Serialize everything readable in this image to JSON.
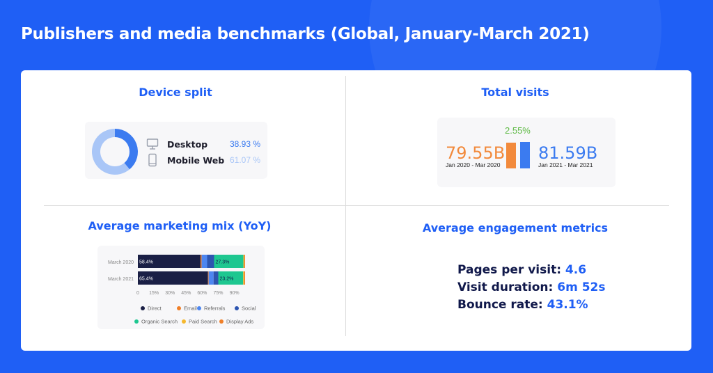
{
  "page_title": "Publishers and media benchmarks (Global, January-March 2021)",
  "colors": {
    "background": "#1f5ff5",
    "accent": "#1f5ff5",
    "desktop": "#3b7bf0",
    "mobile_web": "#a9c6f7",
    "prev_period": "#f28a3c",
    "curr_period": "#3b7bf0",
    "growth": "#5fba46"
  },
  "device_split": {
    "title": "Device split",
    "items": [
      {
        "label": "Desktop",
        "value_text": "38.93 %",
        "value": 38.93,
        "icon": "desktop-icon",
        "color": "#3b7bf0"
      },
      {
        "label": "Mobile Web",
        "value_text": "61.07 %",
        "value": 61.07,
        "icon": "mobile-icon",
        "color": "#a9c6f7"
      }
    ]
  },
  "total_visits": {
    "title": "Total visits",
    "change": "2.55%",
    "previous": {
      "value_text": "79.55B",
      "value": 79.55,
      "period": "Jan 2020 - Mar 2020"
    },
    "current": {
      "value_text": "81.59B",
      "value": 81.59,
      "period": "Jan 2021 - Mar 2021"
    }
  },
  "marketing_mix": {
    "title": "Average marketing mix (YoY)"
  },
  "engagement": {
    "title": "Average engagement metrics",
    "metrics": [
      {
        "label": "Pages per visit:",
        "value": "4.6"
      },
      {
        "label": "Visit duration:",
        "value": "6m 52s"
      },
      {
        "label": "Bounce rate:",
        "value": "43.1%"
      }
    ]
  },
  "chart_data": [
    {
      "type": "pie",
      "title": "Device split",
      "labels": [
        "Desktop",
        "Mobile Web"
      ],
      "values": [
        38.93,
        61.07
      ],
      "colors": [
        "#3b7bf0",
        "#a9c6f7"
      ]
    },
    {
      "type": "bar",
      "title": "Total visits",
      "categories": [
        "Jan 2020 - Mar 2020",
        "Jan 2021 - Mar 2021"
      ],
      "values": [
        79.55,
        81.59
      ],
      "colors": [
        "#f28a3c",
        "#3b7bf0"
      ]
    },
    {
      "type": "bar",
      "orientation": "horizontal",
      "stacked": true,
      "title": "Average marketing mix (YoY)",
      "categories": [
        "March 2020",
        "March 2021"
      ],
      "xlim": [
        0,
        100
      ],
      "xticks": [
        "0",
        "15%",
        "30%",
        "45%",
        "60%",
        "75%",
        "90%"
      ],
      "legend_position": "bottom",
      "series": [
        {
          "name": "Direct",
          "color": "#1a1f45",
          "values": [
            58.4,
            65.4
          ],
          "labels": [
            "58.4%",
            "65.4%"
          ]
        },
        {
          "name": "Email",
          "color": "#f07f28",
          "values": [
            1.0,
            0.6
          ]
        },
        {
          "name": "Referrals",
          "color": "#4d86f0",
          "values": [
            5.2,
            4.6
          ]
        },
        {
          "name": "Social",
          "color": "#2d55b0",
          "values": [
            6.5,
            4.4
          ]
        },
        {
          "name": "Organic Search",
          "color": "#1ec790",
          "values": [
            27.3,
            23.2
          ],
          "labels": [
            "27.3%",
            "23.2%"
          ]
        },
        {
          "name": "Paid Search",
          "color": "#f5b82e",
          "values": [
            0.8,
            0.9
          ]
        },
        {
          "name": "Display Ads",
          "color": "#f0802a",
          "values": [
            0.8,
            0.9
          ]
        }
      ]
    }
  ]
}
